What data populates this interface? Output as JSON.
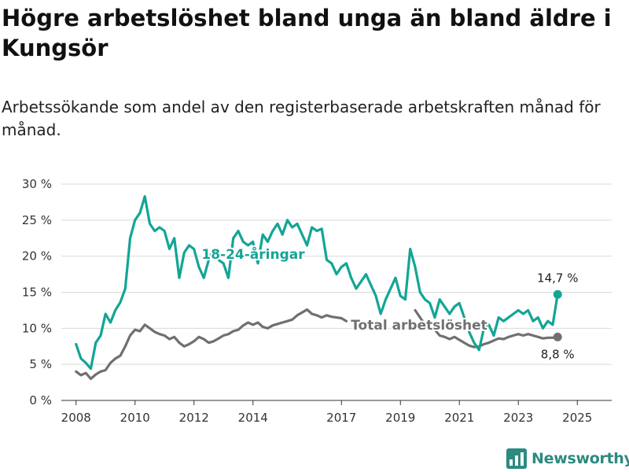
{
  "header": {
    "title": "Högre arbetslöshet bland unga än bland äldre i Kungsör",
    "subtitle": "Arbetssökande som andel av den registerbaserade arbetskraften månad för månad."
  },
  "brand": {
    "name": "Newsworthy",
    "icon": "bar-chart-icon",
    "color": "#2c8a80"
  },
  "colors": {
    "youth": "#13a595",
    "total": "#707070",
    "grid": "#d9d9d9",
    "axis": "#333333"
  },
  "chart_data": {
    "type": "line",
    "title": "Högre arbetslöshet bland unga än bland äldre i Kungsör",
    "subtitle": "Arbetssökande som andel av den registerbaserade arbetskraften månad för månad.",
    "xlabel": "",
    "ylabel": "",
    "xlim": [
      "2007-07",
      "2026-03"
    ],
    "ylim": [
      0,
      30
    ],
    "y_ticks": [
      0,
      5,
      10,
      15,
      20,
      25,
      30
    ],
    "y_tick_labels": [
      "0 %",
      "5 %",
      "10 %",
      "15 %",
      "20 %",
      "25 %",
      "30 %"
    ],
    "x_ticks": [
      "2008-01",
      "2010-01",
      "2012-01",
      "2014-01",
      "2017-01",
      "2019-01",
      "2021-01",
      "2023-01",
      "2025-01"
    ],
    "x_tick_labels": [
      "2008",
      "2010",
      "2012",
      "2014",
      "2017",
      "2019",
      "2021",
      "2023",
      "2025"
    ],
    "grid": true,
    "legend": "none",
    "series": [
      {
        "name": "18-24-åringar",
        "color": "#13a595",
        "end_label": "14,7 %",
        "points": [
          [
            "2008-01",
            7.8
          ],
          [
            "2008-03",
            5.8
          ],
          [
            "2008-05",
            5.2
          ],
          [
            "2008-07",
            4.4
          ],
          [
            "2008-09",
            8.0
          ],
          [
            "2008-11",
            9.0
          ],
          [
            "2009-01",
            12.0
          ],
          [
            "2009-03",
            10.8
          ],
          [
            "2009-05",
            12.5
          ],
          [
            "2009-07",
            13.6
          ],
          [
            "2009-09",
            15.5
          ],
          [
            "2009-11",
            22.5
          ],
          [
            "2010-01",
            25.0
          ],
          [
            "2010-03",
            26.0
          ],
          [
            "2010-05",
            28.3
          ],
          [
            "2010-07",
            24.5
          ],
          [
            "2010-09",
            23.5
          ],
          [
            "2010-11",
            24.0
          ],
          [
            "2011-01",
            23.5
          ],
          [
            "2011-03",
            21.0
          ],
          [
            "2011-05",
            22.5
          ],
          [
            "2011-07",
            17.0
          ],
          [
            "2011-09",
            20.5
          ],
          [
            "2011-11",
            21.5
          ],
          [
            "2012-01",
            21.0
          ],
          [
            "2012-03",
            18.5
          ],
          [
            "2012-05",
            17.0
          ],
          [
            "2012-07",
            19.5
          ],
          [
            "2012-09",
            21.0
          ],
          [
            "2012-11",
            19.5
          ],
          [
            "2013-01",
            19.0
          ],
          [
            "2013-03",
            17.0
          ],
          [
            "2013-05",
            22.5
          ],
          [
            "2013-07",
            23.5
          ],
          [
            "2013-09",
            22.0
          ],
          [
            "2013-11",
            21.5
          ],
          [
            "2014-01",
            22.0
          ],
          [
            "2014-03",
            19.0
          ],
          [
            "2014-05",
            23.0
          ],
          [
            "2014-07",
            22.0
          ],
          [
            "2014-09",
            23.5
          ],
          [
            "2014-11",
            24.5
          ],
          [
            "2015-01",
            23.0
          ],
          [
            "2015-03",
            25.0
          ],
          [
            "2015-05",
            24.0
          ],
          [
            "2015-07",
            24.5
          ],
          [
            "2015-09",
            23.0
          ],
          [
            "2015-11",
            21.5
          ],
          [
            "2016-01",
            24.0
          ],
          [
            "2016-03",
            23.5
          ],
          [
            "2016-05",
            23.8
          ],
          [
            "2016-07",
            19.5
          ],
          [
            "2016-09",
            19.0
          ],
          [
            "2016-11",
            17.5
          ],
          [
            "2017-01",
            18.5
          ],
          [
            "2017-03",
            19.0
          ],
          [
            "2017-05",
            17.0
          ],
          [
            "2017-07",
            15.5
          ],
          [
            "2017-09",
            16.5
          ],
          [
            "2017-11",
            17.5
          ],
          [
            "2018-01",
            16.0
          ],
          [
            "2018-03",
            14.5
          ],
          [
            "2018-05",
            12.0
          ],
          [
            "2018-07",
            14.0
          ],
          [
            "2018-09",
            15.5
          ],
          [
            "2018-11",
            17.0
          ],
          [
            "2019-01",
            14.5
          ],
          [
            "2019-03",
            14.0
          ],
          [
            "2019-05",
            21.0
          ],
          [
            "2019-07",
            18.5
          ],
          [
            "2019-09",
            15.0
          ],
          [
            "2019-11",
            14.0
          ],
          [
            "2020-01",
            13.5
          ],
          [
            "2020-03",
            11.5
          ],
          [
            "2020-05",
            14.0
          ],
          [
            "2020-07",
            13.0
          ],
          [
            "2020-09",
            12.0
          ],
          [
            "2020-11",
            13.0
          ],
          [
            "2021-01",
            13.5
          ],
          [
            "2021-03",
            11.5
          ],
          [
            "2021-05",
            9.5
          ],
          [
            "2021-07",
            8.0
          ],
          [
            "2021-09",
            7.0
          ],
          [
            "2021-11",
            10.0
          ],
          [
            "2022-01",
            10.5
          ],
          [
            "2022-03",
            9.0
          ],
          [
            "2022-05",
            11.5
          ],
          [
            "2022-07",
            11.0
          ],
          [
            "2022-09",
            11.5
          ],
          [
            "2022-11",
            12.0
          ],
          [
            "2023-01",
            12.5
          ],
          [
            "2023-03",
            12.0
          ],
          [
            "2023-05",
            12.5
          ],
          [
            "2023-07",
            11.0
          ],
          [
            "2023-09",
            11.5
          ],
          [
            "2023-11",
            10.0
          ],
          [
            "2024-01",
            11.0
          ],
          [
            "2024-03",
            10.5
          ],
          [
            "2024-05",
            14.7
          ]
        ]
      },
      {
        "name": "Total arbetslöshet",
        "color": "#707070",
        "end_label": "8,8 %",
        "points": [
          [
            "2008-01",
            4.0
          ],
          [
            "2008-03",
            3.5
          ],
          [
            "2008-05",
            3.8
          ],
          [
            "2008-07",
            3.0
          ],
          [
            "2008-09",
            3.6
          ],
          [
            "2008-11",
            4.0
          ],
          [
            "2009-01",
            4.2
          ],
          [
            "2009-03",
            5.2
          ],
          [
            "2009-05",
            5.8
          ],
          [
            "2009-07",
            6.2
          ],
          [
            "2009-09",
            7.5
          ],
          [
            "2009-11",
            9.0
          ],
          [
            "2010-01",
            9.8
          ],
          [
            "2010-03",
            9.6
          ],
          [
            "2010-05",
            10.5
          ],
          [
            "2010-07",
            10.0
          ],
          [
            "2010-09",
            9.5
          ],
          [
            "2010-11",
            9.2
          ],
          [
            "2011-01",
            9.0
          ],
          [
            "2011-03",
            8.5
          ],
          [
            "2011-05",
            8.8
          ],
          [
            "2011-07",
            8.0
          ],
          [
            "2011-09",
            7.5
          ],
          [
            "2011-11",
            7.8
          ],
          [
            "2012-01",
            8.2
          ],
          [
            "2012-03",
            8.8
          ],
          [
            "2012-05",
            8.5
          ],
          [
            "2012-07",
            8.0
          ],
          [
            "2012-09",
            8.2
          ],
          [
            "2012-11",
            8.6
          ],
          [
            "2013-01",
            9.0
          ],
          [
            "2013-03",
            9.2
          ],
          [
            "2013-05",
            9.6
          ],
          [
            "2013-07",
            9.8
          ],
          [
            "2013-09",
            10.4
          ],
          [
            "2013-11",
            10.8
          ],
          [
            "2014-01",
            10.5
          ],
          [
            "2014-03",
            10.8
          ],
          [
            "2014-05",
            10.2
          ],
          [
            "2014-07",
            10.0
          ],
          [
            "2014-09",
            10.4
          ],
          [
            "2014-11",
            10.6
          ],
          [
            "2015-01",
            10.8
          ],
          [
            "2015-03",
            11.0
          ],
          [
            "2015-05",
            11.2
          ],
          [
            "2015-07",
            11.8
          ],
          [
            "2015-09",
            12.2
          ],
          [
            "2015-11",
            12.6
          ],
          [
            "2016-01",
            12.0
          ],
          [
            "2016-03",
            11.8
          ],
          [
            "2016-05",
            11.5
          ],
          [
            "2016-07",
            11.8
          ],
          [
            "2016-09",
            11.6
          ],
          [
            "2016-11",
            11.5
          ],
          [
            "2017-01",
            11.4
          ],
          [
            "2017-03",
            11.0
          ]
        ],
        "tail_points": [
          [
            "2019-07",
            12.5
          ],
          [
            "2019-09",
            11.5
          ],
          [
            "2019-11",
            10.5
          ],
          [
            "2020-01",
            10.0
          ],
          [
            "2020-03",
            9.8
          ],
          [
            "2020-05",
            9.0
          ],
          [
            "2020-07",
            8.8
          ],
          [
            "2020-09",
            8.5
          ],
          [
            "2020-11",
            8.8
          ],
          [
            "2021-01",
            8.4
          ],
          [
            "2021-03",
            8.0
          ],
          [
            "2021-05",
            7.6
          ],
          [
            "2021-07",
            7.4
          ],
          [
            "2021-09",
            7.5
          ],
          [
            "2021-11",
            7.8
          ],
          [
            "2022-01",
            8.0
          ],
          [
            "2022-03",
            8.3
          ],
          [
            "2022-05",
            8.6
          ],
          [
            "2022-07",
            8.5
          ],
          [
            "2022-09",
            8.8
          ],
          [
            "2022-11",
            9.0
          ],
          [
            "2023-01",
            9.2
          ],
          [
            "2023-03",
            9.0
          ],
          [
            "2023-05",
            9.2
          ],
          [
            "2023-07",
            9.0
          ],
          [
            "2023-09",
            8.8
          ],
          [
            "2023-11",
            8.6
          ],
          [
            "2024-01",
            8.7
          ],
          [
            "2024-03",
            8.7
          ],
          [
            "2024-05",
            8.8
          ]
        ]
      }
    ]
  }
}
